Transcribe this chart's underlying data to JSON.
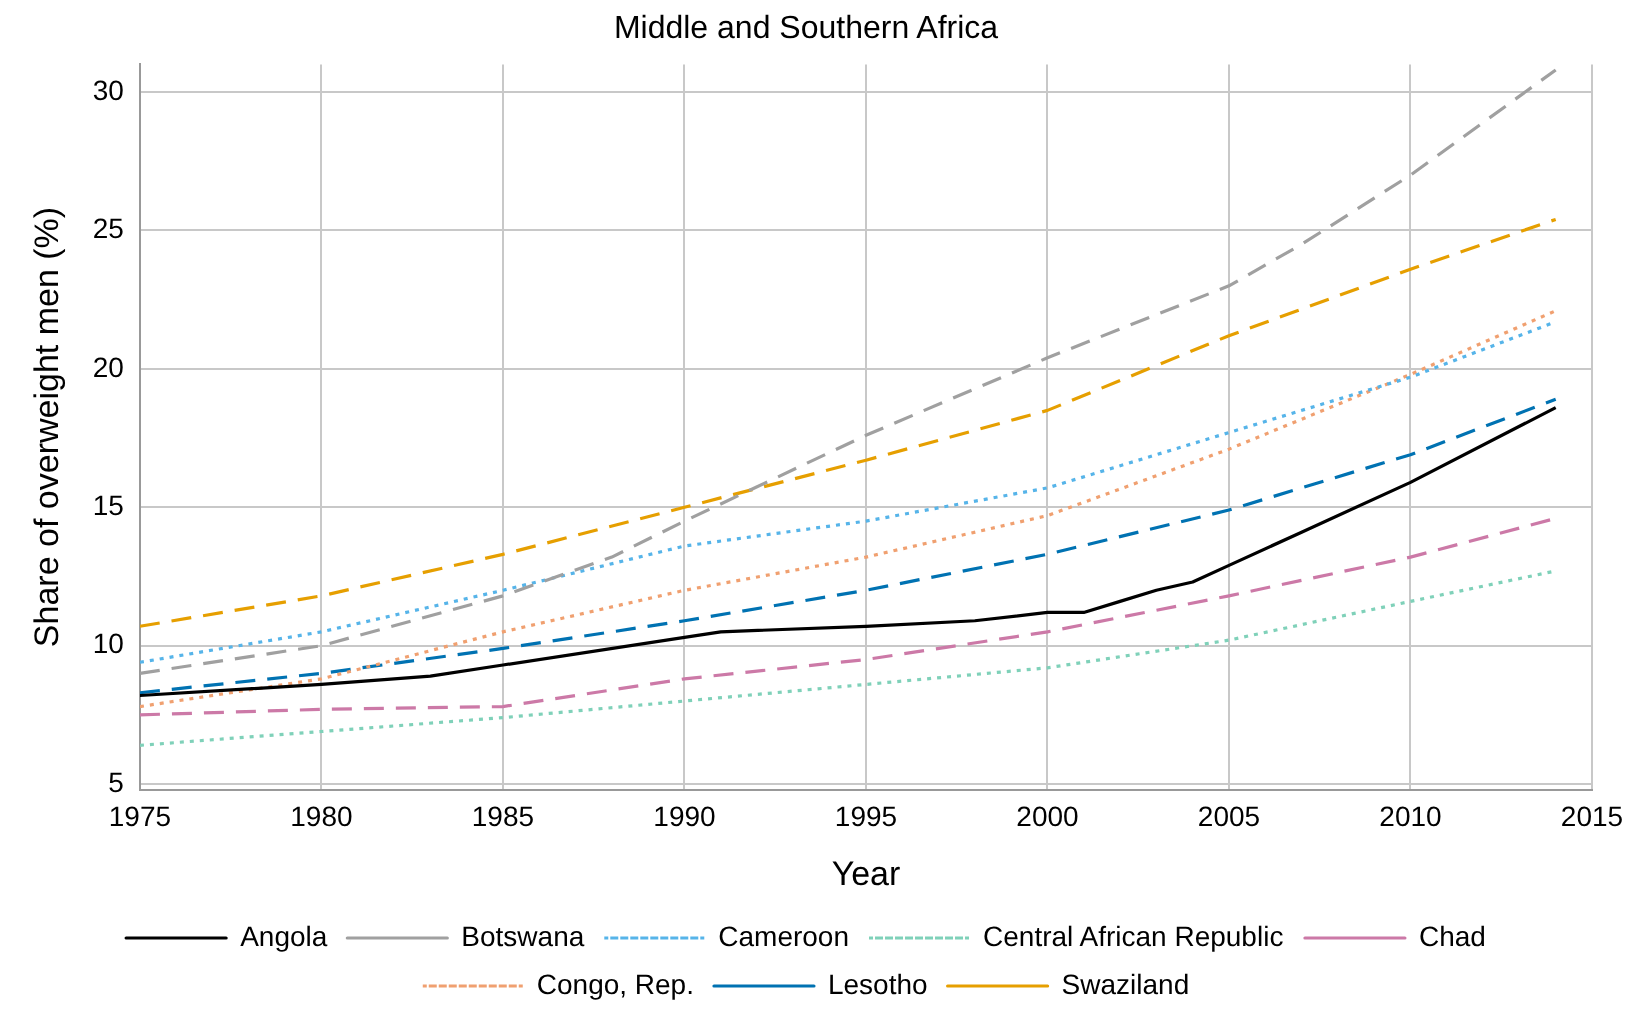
{
  "chart_data": {
    "type": "line",
    "title": "Middle and Southern Africa",
    "xlabel": "Year",
    "ylabel": "Share of overweight men (%)",
    "xlim": [
      1975,
      2015
    ],
    "xticks": [
      1975,
      1980,
      1985,
      1990,
      1995,
      2000,
      2005,
      2010,
      2015
    ],
    "ylim": [
      4.8,
      31
    ],
    "yticks": [
      5,
      10,
      15,
      20,
      25,
      30
    ],
    "grid": true,
    "legend": "bottom",
    "marker": "none",
    "series": [
      {
        "name": "Angola",
        "color": "#000000",
        "line_style": "solid",
        "x": [
          1975,
          1980,
          1983,
          1985,
          1990,
          1991,
          1995,
          1998,
          2000,
          2001,
          2002,
          2003,
          2004,
          2005,
          2007,
          2010,
          2014
        ],
        "values": [
          8.2,
          8.6,
          8.9,
          9.3,
          10.3,
          10.5,
          10.7,
          10.9,
          11.2,
          11.2,
          11.6,
          12.0,
          12.3,
          12.9,
          14.1,
          15.9,
          18.6
        ]
      },
      {
        "name": "Botswana",
        "color": "#a0a0a0",
        "line_style": "dashed",
        "x": [
          1975,
          1980,
          1985,
          1988,
          1990,
          1995,
          2000,
          2005,
          2007,
          2010,
          2014
        ],
        "values": [
          9.0,
          10.0,
          11.8,
          13.2,
          14.5,
          17.6,
          20.4,
          23.0,
          24.5,
          27.0,
          30.8
        ]
      },
      {
        "name": "Cameroon",
        "color": "#56b4e9",
        "line_style": "dotted",
        "x": [
          1975,
          1980,
          1985,
          1990,
          1995,
          2000,
          2005,
          2010,
          2014
        ],
        "values": [
          9.4,
          10.5,
          12.0,
          13.6,
          14.5,
          15.7,
          17.7,
          19.7,
          21.7
        ]
      },
      {
        "name": "Central African Republic",
        "color": "#7fd1b9",
        "line_style": "dotted",
        "x": [
          1975,
          1980,
          1985,
          1990,
          1995,
          2000,
          2005,
          2010,
          2014
        ],
        "values": [
          6.4,
          6.9,
          7.4,
          8.0,
          8.6,
          9.2,
          10.2,
          11.6,
          12.7
        ]
      },
      {
        "name": "Chad",
        "color": "#cc79a7",
        "line_style": "dashed",
        "x": [
          1975,
          1980,
          1985,
          1990,
          1995,
          2000,
          2005,
          2010,
          2014
        ],
        "values": [
          7.5,
          7.7,
          7.8,
          8.8,
          9.5,
          10.5,
          11.8,
          13.2,
          14.6
        ]
      },
      {
        "name": "Congo, Rep.",
        "color": "#f0a070",
        "line_style": "dotted",
        "x": [
          1975,
          1980,
          1985,
          1990,
          1995,
          2000,
          2005,
          2010,
          2014
        ],
        "values": [
          7.8,
          8.8,
          10.5,
          12.0,
          13.2,
          14.7,
          17.1,
          19.8,
          22.1
        ]
      },
      {
        "name": "Lesotho",
        "color": "#0072b2",
        "line_style": "dashed",
        "x": [
          1975,
          1980,
          1985,
          1990,
          1995,
          2000,
          2005,
          2010,
          2014
        ],
        "values": [
          8.3,
          9.0,
          9.9,
          10.9,
          12.0,
          13.3,
          14.9,
          16.9,
          18.9
        ]
      },
      {
        "name": "Swaziland",
        "color": "#e69f00",
        "line_style": "dashed",
        "x": [
          1975,
          1980,
          1985,
          1990,
          1995,
          2000,
          2005,
          2010,
          2014
        ],
        "values": [
          10.7,
          11.8,
          13.3,
          15.0,
          16.7,
          18.5,
          21.2,
          23.6,
          25.4
        ]
      }
    ]
  }
}
